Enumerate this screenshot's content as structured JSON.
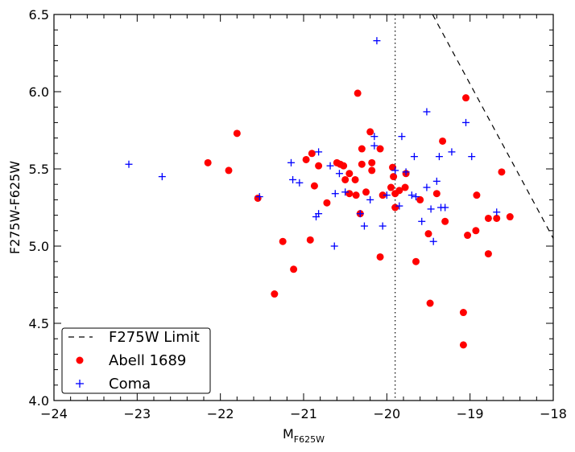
{
  "chart_data": {
    "type": "scatter",
    "title": "",
    "xlabel_main": "M",
    "xlabel_sub": "F625W",
    "ylabel": "F275W-F625W",
    "xlim": [
      -24,
      -18
    ],
    "ylim": [
      4.0,
      6.5
    ],
    "x_ticks": [
      -24,
      -23,
      -22,
      -21,
      -20,
      -19,
      -18
    ],
    "x_tick_labels": [
      "−24",
      "−23",
      "−22",
      "−21",
      "−20",
      "−19",
      "−18"
    ],
    "y_ticks": [
      4.0,
      4.5,
      5.0,
      5.5,
      6.0,
      6.5
    ],
    "y_tick_labels": [
      "4.0",
      "4.5",
      "5.0",
      "5.5",
      "6.0",
      "6.5"
    ],
    "grid": false,
    "legend_position": "bottom-left",
    "vertical_line": {
      "x": -19.9,
      "style": "dotted",
      "color": "#000000"
    },
    "limit_line": {
      "name": "F275W Limit",
      "x": [
        -19.45,
        -18.0
      ],
      "y": [
        6.5,
        5.05
      ],
      "style": "dashed",
      "color": "#000000"
    },
    "series": [
      {
        "name": "Abell 1689",
        "marker": "circle",
        "color": "#ff0000",
        "points": [
          [
            -22.15,
            5.54
          ],
          [
            -21.9,
            5.49
          ],
          [
            -21.8,
            5.73
          ],
          [
            -21.55,
            5.31
          ],
          [
            -21.35,
            4.69
          ],
          [
            -21.25,
            5.03
          ],
          [
            -21.12,
            4.85
          ],
          [
            -20.97,
            5.56
          ],
          [
            -20.92,
            5.04
          ],
          [
            -20.9,
            5.6
          ],
          [
            -20.87,
            5.39
          ],
          [
            -20.82,
            5.52
          ],
          [
            -20.72,
            5.28
          ],
          [
            -20.6,
            5.54
          ],
          [
            -20.56,
            5.53
          ],
          [
            -20.52,
            5.52
          ],
          [
            -20.5,
            5.43
          ],
          [
            -20.45,
            5.47
          ],
          [
            -20.45,
            5.34
          ],
          [
            -20.38,
            5.43
          ],
          [
            -20.37,
            5.33
          ],
          [
            -20.35,
            5.99
          ],
          [
            -20.32,
            5.21
          ],
          [
            -20.3,
            5.53
          ],
          [
            -20.3,
            5.63
          ],
          [
            -20.25,
            5.35
          ],
          [
            -20.2,
            5.74
          ],
          [
            -20.18,
            5.54
          ],
          [
            -20.18,
            5.49
          ],
          [
            -20.08,
            4.93
          ],
          [
            -20.08,
            5.63
          ],
          [
            -20.05,
            5.33
          ],
          [
            -19.95,
            5.38
          ],
          [
            -19.93,
            5.51
          ],
          [
            -19.92,
            5.45
          ],
          [
            -19.9,
            5.34
          ],
          [
            -19.9,
            5.25
          ],
          [
            -19.85,
            5.36
          ],
          [
            -19.78,
            5.38
          ],
          [
            -19.77,
            5.47
          ],
          [
            -19.65,
            4.9
          ],
          [
            -19.6,
            5.3
          ],
          [
            -19.5,
            5.08
          ],
          [
            -19.48,
            4.63
          ],
          [
            -19.4,
            5.34
          ],
          [
            -19.33,
            5.68
          ],
          [
            -19.3,
            5.16
          ],
          [
            -19.08,
            4.57
          ],
          [
            -19.08,
            4.36
          ],
          [
            -19.05,
            5.96
          ],
          [
            -19.03,
            5.07
          ],
          [
            -18.93,
            5.1
          ],
          [
            -18.92,
            5.33
          ],
          [
            -18.78,
            4.95
          ],
          [
            -18.78,
            5.18
          ],
          [
            -18.68,
            5.18
          ],
          [
            -18.62,
            5.48
          ],
          [
            -18.52,
            5.19
          ]
        ]
      },
      {
        "name": "Coma",
        "marker": "plus",
        "color": "#0000ff",
        "points": [
          [
            -23.1,
            5.53
          ],
          [
            -22.7,
            5.45
          ],
          [
            -21.53,
            5.32
          ],
          [
            -21.15,
            5.54
          ],
          [
            -21.13,
            5.43
          ],
          [
            -21.05,
            5.41
          ],
          [
            -20.85,
            5.19
          ],
          [
            -20.82,
            5.21
          ],
          [
            -20.82,
            5.61
          ],
          [
            -20.68,
            5.52
          ],
          [
            -20.63,
            5.0
          ],
          [
            -20.62,
            5.34
          ],
          [
            -20.57,
            5.47
          ],
          [
            -20.5,
            5.35
          ],
          [
            -20.32,
            5.21
          ],
          [
            -20.27,
            5.13
          ],
          [
            -20.2,
            5.3
          ],
          [
            -20.15,
            5.71
          ],
          [
            -20.15,
            5.65
          ],
          [
            -20.12,
            6.33
          ],
          [
            -20.05,
            5.13
          ],
          [
            -20.0,
            5.33
          ],
          [
            -19.9,
            5.49
          ],
          [
            -19.85,
            5.26
          ],
          [
            -19.82,
            5.71
          ],
          [
            -19.77,
            5.48
          ],
          [
            -19.7,
            5.33
          ],
          [
            -19.67,
            5.58
          ],
          [
            -19.65,
            5.32
          ],
          [
            -19.58,
            5.16
          ],
          [
            -19.52,
            5.87
          ],
          [
            -19.52,
            5.38
          ],
          [
            -19.47,
            5.24
          ],
          [
            -19.44,
            5.03
          ],
          [
            -19.4,
            5.42
          ],
          [
            -19.37,
            5.58
          ],
          [
            -19.35,
            5.25
          ],
          [
            -19.3,
            5.25
          ],
          [
            -19.22,
            5.61
          ],
          [
            -19.05,
            5.8
          ],
          [
            -18.98,
            5.58
          ],
          [
            -18.68,
            5.22
          ]
        ]
      }
    ],
    "legend": [
      {
        "label": "F275W Limit",
        "symbol": "dashed-line"
      },
      {
        "label": "Abell 1689",
        "symbol": "circle"
      },
      {
        "label": "Coma",
        "symbol": "plus"
      }
    ]
  }
}
